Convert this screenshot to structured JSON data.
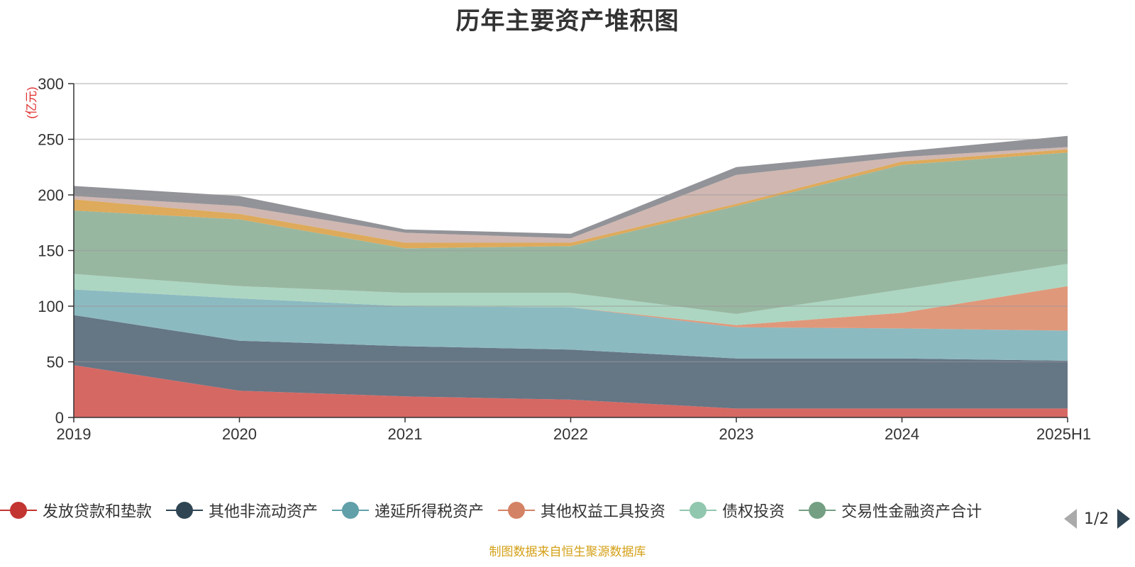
{
  "chart_data": {
    "type": "area",
    "title": "历年主要资产堆积图",
    "unit_label": "(亿元)",
    "categories": [
      "2019",
      "2020",
      "2021",
      "2022",
      "2023",
      "2024",
      "2025H1"
    ],
    "y_ticks": [
      "0",
      "50",
      "100",
      "150",
      "200",
      "250",
      "300"
    ],
    "ylim": [
      0,
      300
    ],
    "grid": true,
    "stacked": true,
    "series": [
      {
        "name": "发放贷款和垫款",
        "color": "#d4605b",
        "values": [
          47,
          24,
          19,
          16,
          8,
          8,
          8
        ]
      },
      {
        "name": "其他非流动资产",
        "color": "#5d6f7e",
        "values": [
          45,
          45,
          45,
          45,
          45,
          45,
          43
        ]
      },
      {
        "name": "递延所得税资产",
        "color": "#86b6be",
        "values": [
          23,
          38,
          36,
          38,
          28,
          27,
          27
        ]
      },
      {
        "name": "其他权益工具投资",
        "color": "#de9274",
        "values": [
          0,
          0,
          0,
          0,
          2,
          14,
          40
        ]
      },
      {
        "name": "债权投资",
        "color": "#a8d4be",
        "values": [
          14,
          11,
          12,
          13,
          10,
          21,
          20
        ]
      },
      {
        "name": "交易性金融资产合计",
        "color": "#92b39c",
        "values": [
          57,
          60,
          40,
          42,
          97,
          112,
          100
        ]
      },
      {
        "name": "",
        "color": "#dca552",
        "values": [
          10,
          5,
          5,
          3,
          2,
          3,
          3
        ]
      },
      {
        "name": "",
        "color": "#cdb3ad",
        "values": [
          3,
          7,
          9,
          4,
          26,
          4,
          2
        ]
      },
      {
        "name": "",
        "color": "#8c8d92",
        "values": [
          9,
          9,
          3,
          4,
          7,
          5,
          10
        ]
      }
    ]
  },
  "legend": {
    "items": [
      {
        "label": "发放贷款和垫款",
        "color": "#c23531"
      },
      {
        "label": "其他非流动资产",
        "color": "#2f4554"
      },
      {
        "label": "递延所得税资产",
        "color": "#61a0a8"
      },
      {
        "label": "其他权益工具投资",
        "color": "#d48265"
      },
      {
        "label": "债权投资",
        "color": "#91c7ae"
      },
      {
        "label": "交易性金融资产合计",
        "color": "#749f83"
      }
    ],
    "pager": "1/2"
  },
  "source_note": "制图数据来自恒生聚源数据库"
}
